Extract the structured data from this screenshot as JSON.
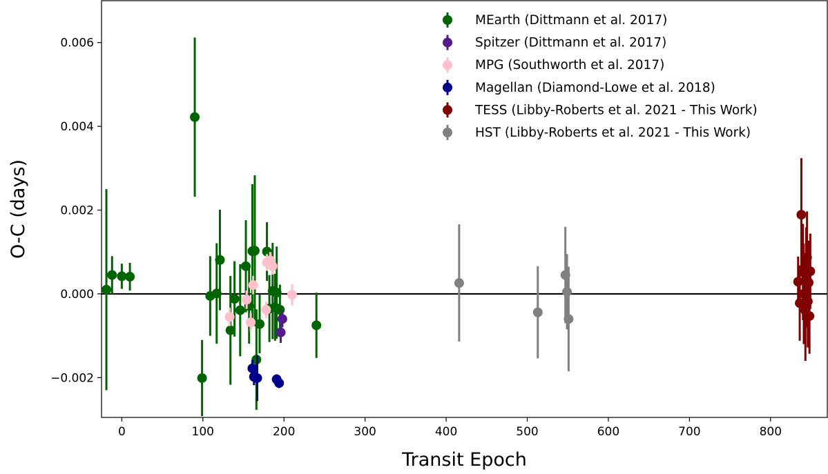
{
  "chart_data": {
    "type": "scatter",
    "xlabel": "Transit Epoch",
    "ylabel": "O-C (days)",
    "xlim": [
      -25,
      870
    ],
    "ylim": [
      -0.00295,
      0.007
    ],
    "x_ticks": [
      0,
      100,
      200,
      300,
      400,
      500,
      600,
      700,
      800
    ],
    "x_tick_labels": [
      "0",
      "100",
      "200",
      "300",
      "400",
      "500",
      "600",
      "700",
      "800"
    ],
    "y_ticks": [
      -0.002,
      0.0,
      0.002,
      0.004,
      0.006
    ],
    "y_tick_labels": [
      "−0.002",
      "0.000",
      "0.002",
      "0.004",
      "0.006"
    ],
    "reference_line": 0.0,
    "legend_position": "upper-right",
    "grid": false,
    "series": [
      {
        "name": "MEarth (Dittmann et al. 2017)",
        "color": "#006400",
        "points": [
          {
            "x": -19,
            "y": 0.0001,
            "err": 0.0024
          },
          {
            "x": -12,
            "y": 0.00045,
            "err": 0.00045
          },
          {
            "x": 0,
            "y": 0.00042,
            "err": 0.0003
          },
          {
            "x": 10,
            "y": 0.00041,
            "err": 0.00033
          },
          {
            "x": 90,
            "y": 0.00422,
            "err": 0.0019
          },
          {
            "x": 99,
            "y": -0.00201,
            "err": 0.00091
          },
          {
            "x": 109,
            "y": -5e-05,
            "err": 0.00095
          },
          {
            "x": 117,
            "y": 1e-05,
            "err": 0.0012
          },
          {
            "x": 121,
            "y": 0.00081,
            "err": 0.0012
          },
          {
            "x": 134,
            "y": -0.00087,
            "err": 0.0013
          },
          {
            "x": 139,
            "y": -0.00012,
            "err": 0.0009
          },
          {
            "x": 146,
            "y": -0.00039,
            "err": 0.0011
          },
          {
            "x": 153,
            "y": 0.00066,
            "err": 0.0011
          },
          {
            "x": 157,
            "y": -0.00029,
            "err": 0.0009
          },
          {
            "x": 161,
            "y": 0.00102,
            "err": 0.0016
          },
          {
            "x": 164,
            "y": 0.00103,
            "err": 0.0018
          },
          {
            "x": 166,
            "y": -0.00157,
            "err": 0.0012
          },
          {
            "x": 170,
            "y": -0.00072,
            "err": 0.0007
          },
          {
            "x": 179,
            "y": 0.00101,
            "err": 0.0007
          },
          {
            "x": 182,
            "y": -0.00035,
            "err": 0.0008
          },
          {
            "x": 186,
            "y": 7e-05,
            "err": 0.00115
          },
          {
            "x": 189,
            "y": -0.00032,
            "err": 0.0008
          },
          {
            "x": 191,
            "y": 3e-05,
            "err": 0.0011
          },
          {
            "x": 195,
            "y": -0.00038,
            "err": 0.0006
          },
          {
            "x": 240,
            "y": -0.00075,
            "err": 0.00078
          }
        ]
      },
      {
        "name": "Spitzer (Dittmann et al. 2017)",
        "color": "#551a8b",
        "points": [
          {
            "x": 196,
            "y": -0.00092,
            "err": 0.00025
          },
          {
            "x": 198,
            "y": -0.0006,
            "err": 0.0002
          }
        ]
      },
      {
        "name": "MPG (Southworth et al. 2017)",
        "color": "#ffc0cb",
        "points": [
          {
            "x": 133,
            "y": -0.00055,
            "err": 0.00022
          },
          {
            "x": 154,
            "y": -0.00014,
            "err": 0.00022
          },
          {
            "x": 159,
            "y": -0.00068,
            "err": 0.00022
          },
          {
            "x": 162,
            "y": 0.00021,
            "err": 0.00022
          },
          {
            "x": 178,
            "y": -0.00038,
            "err": 0.0002
          },
          {
            "x": 179,
            "y": 0.00075,
            "err": 0.0002
          },
          {
            "x": 183,
            "y": 0.0008,
            "err": 0.0002
          },
          {
            "x": 186,
            "y": 0.00066,
            "err": 0.0002
          },
          {
            "x": 210,
            "y": -2e-05,
            "err": 0.00025
          }
        ]
      },
      {
        "name": "Magellan (Diamond-Lowe et al. 2018)",
        "color": "#00008b",
        "points": [
          {
            "x": 161,
            "y": -0.00178,
            "err": 0.0002
          },
          {
            "x": 163,
            "y": -0.00198,
            "err": 0.0002
          },
          {
            "x": 167,
            "y": -0.00201,
            "err": 0.00055
          },
          {
            "x": 191,
            "y": -0.00204,
            "err": 0.00012
          },
          {
            "x": 194,
            "y": -0.00213,
            "err": 0.00012
          }
        ]
      },
      {
        "name": "TESS (Libby-Roberts et al. 2021 - This Work)",
        "color": "#800000",
        "points": [
          {
            "x": 834,
            "y": 0.00029,
            "err": 0.0006
          },
          {
            "x": 836,
            "y": -0.00022,
            "err": 0.0009
          },
          {
            "x": 838,
            "y": 0.00189,
            "err": 0.00135
          },
          {
            "x": 840,
            "y": 0.00052,
            "err": 0.00115
          },
          {
            "x": 841,
            "y": 0.0,
            "err": 0.0012
          },
          {
            "x": 842,
            "y": -0.00027,
            "err": 0.0009
          },
          {
            "x": 843,
            "y": -0.0004,
            "err": 0.0012
          },
          {
            "x": 844,
            "y": 0.00039,
            "err": 0.0012
          },
          {
            "x": 845,
            "y": 0.00087,
            "err": 0.0011
          },
          {
            "x": 846,
            "y": -0.00018,
            "err": 0.0011
          },
          {
            "x": 847,
            "y": 0.00027,
            "err": 0.001
          },
          {
            "x": 848,
            "y": -0.00053,
            "err": 0.0009
          },
          {
            "x": 849,
            "y": 0.00054,
            "err": 0.0009
          }
        ]
      },
      {
        "name": "HST (Libby-Roberts et al. 2021 - This Work)",
        "color": "#808080",
        "points": [
          {
            "x": 416,
            "y": 0.00026,
            "err": 0.0014
          },
          {
            "x": 513,
            "y": -0.00044,
            "err": 0.0011
          },
          {
            "x": 547,
            "y": 0.00045,
            "err": 0.00115
          },
          {
            "x": 549,
            "y": 5e-05,
            "err": 0.0009
          },
          {
            "x": 551,
            "y": -0.0006,
            "err": 0.00125
          }
        ]
      }
    ]
  }
}
